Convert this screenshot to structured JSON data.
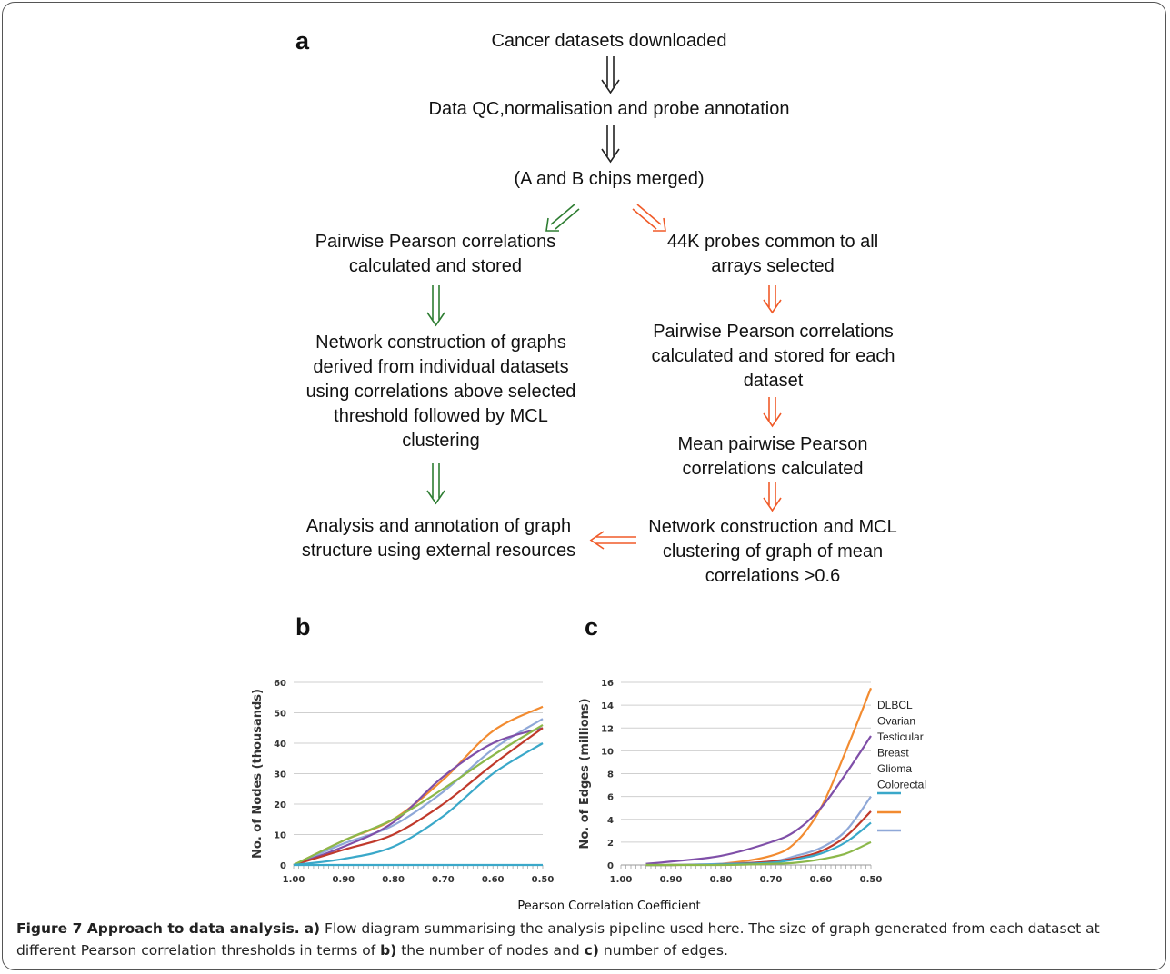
{
  "panel_a": {
    "label": "a",
    "flow": {
      "downloaded": "Cancer datasets downloaded",
      "qc": "Data QC,normalisation and probe annotation",
      "merged": "(A and B chips merged)",
      "left_pairwise": "Pairwise Pearson correlations calculated and stored",
      "left_network": "Network construction  of graphs derived from individual datasets using correlations above selected threshold followed by MCL clustering",
      "left_analysis": "Analysis and annotation of graph structure using external resources",
      "right_probes": "44K probes common to all arrays selected",
      "right_pairwise": "Pairwise Pearson correlations calculated and stored for each dataset",
      "right_mean": "Mean pairwise Pearson correlations calculated",
      "right_network": "Network construction and MCL clustering of graph of mean correlations >0.6"
    },
    "colors": {
      "black": "#222222",
      "green": "#2e7d32",
      "orange": "#f05a28"
    }
  },
  "panel_b": {
    "label": "b"
  },
  "panel_c": {
    "label": "c"
  },
  "shared_xlabel": "Pearson Correlation Coefficient",
  "caption": {
    "fig_label": "Figure 7 Approach to data analysis.",
    "a_label": "a)",
    "a_text": " Flow diagram summarising the analysis pipeline used here. The size of graph generated from each dataset at different Pearson correlation thresholds in terms of ",
    "b_label": "b)",
    "b_text": " the number of nodes and ",
    "c_label": "c)",
    "c_text": " number of edges."
  },
  "chart_data": [
    {
      "type": "line",
      "ylabel": "No. of Nodes (thousands)",
      "xlim": [
        1.0,
        0.5
      ],
      "ylim": [
        0,
        60
      ],
      "xticks": [
        "1.00",
        "0.90",
        "0.80",
        "0.70",
        "0.60",
        "0.50"
      ],
      "yticks": [
        "0",
        "10",
        "20",
        "30",
        "40",
        "50",
        "60"
      ],
      "grid": true,
      "x": [
        1.0,
        0.9,
        0.8,
        0.7,
        0.6,
        0.5
      ],
      "series": [
        {
          "color": "#f28b30",
          "values": [
            0,
            8,
            15,
            28,
            44,
            52
          ]
        },
        {
          "color": "#8fa8d8",
          "values": [
            0,
            7,
            13,
            24,
            38,
            48
          ]
        },
        {
          "color": "#7f4fa8",
          "values": [
            0,
            6,
            14,
            29,
            40,
            45
          ]
        },
        {
          "color": "#c0392b",
          "values": [
            0,
            5,
            10,
            20,
            33,
            45
          ]
        },
        {
          "color": "#8cb84a",
          "values": [
            0,
            8,
            15,
            25,
            36,
            46
          ]
        },
        {
          "color": "#3aa8c9",
          "values": [
            0,
            2,
            6,
            16,
            30,
            40
          ]
        },
        {
          "color": "#3aa8c9",
          "values": [
            0,
            0,
            0,
            0,
            0,
            0
          ]
        }
      ]
    },
    {
      "type": "line",
      "ylabel": "No. of Edges (millions)",
      "xlim": [
        1.0,
        0.5
      ],
      "ylim": [
        0,
        16
      ],
      "xticks": [
        "1.00",
        "0.90",
        "0.80",
        "0.70",
        "0.60",
        "0.50"
      ],
      "yticks": [
        "0",
        "2",
        "4",
        "6",
        "8",
        "10",
        "12",
        "14",
        "16"
      ],
      "grid": true,
      "legend": [
        "DLBCL",
        "Ovarian",
        "Testicular",
        "Breast",
        "Glioma",
        "Colorectal"
      ],
      "legend_position": "right",
      "x": [
        0.95,
        0.9,
        0.8,
        0.7,
        0.65,
        0.6,
        0.55,
        0.5
      ],
      "series": [
        {
          "color": "#f28b30",
          "values": [
            0,
            0,
            0.1,
            0.8,
            2.0,
            5.0,
            10.0,
            15.5
          ]
        },
        {
          "color": "#7f4fa8",
          "values": [
            0.1,
            0.3,
            0.8,
            2.0,
            3.0,
            5.0,
            8.0,
            11.3
          ]
        },
        {
          "color": "#8fa8d8",
          "values": [
            0,
            0,
            0.1,
            0.3,
            0.8,
            1.5,
            3.0,
            6.0
          ]
        },
        {
          "color": "#c0392b",
          "values": [
            0,
            0,
            0.05,
            0.3,
            0.6,
            1.2,
            2.5,
            4.7
          ]
        },
        {
          "color": "#3aa8c9",
          "values": [
            0,
            0,
            0.05,
            0.2,
            0.5,
            1.0,
            2.0,
            3.7
          ]
        },
        {
          "color": "#8cb84a",
          "values": [
            0,
            0,
            0,
            0.1,
            0.2,
            0.5,
            1.0,
            2.0
          ]
        }
      ]
    }
  ]
}
